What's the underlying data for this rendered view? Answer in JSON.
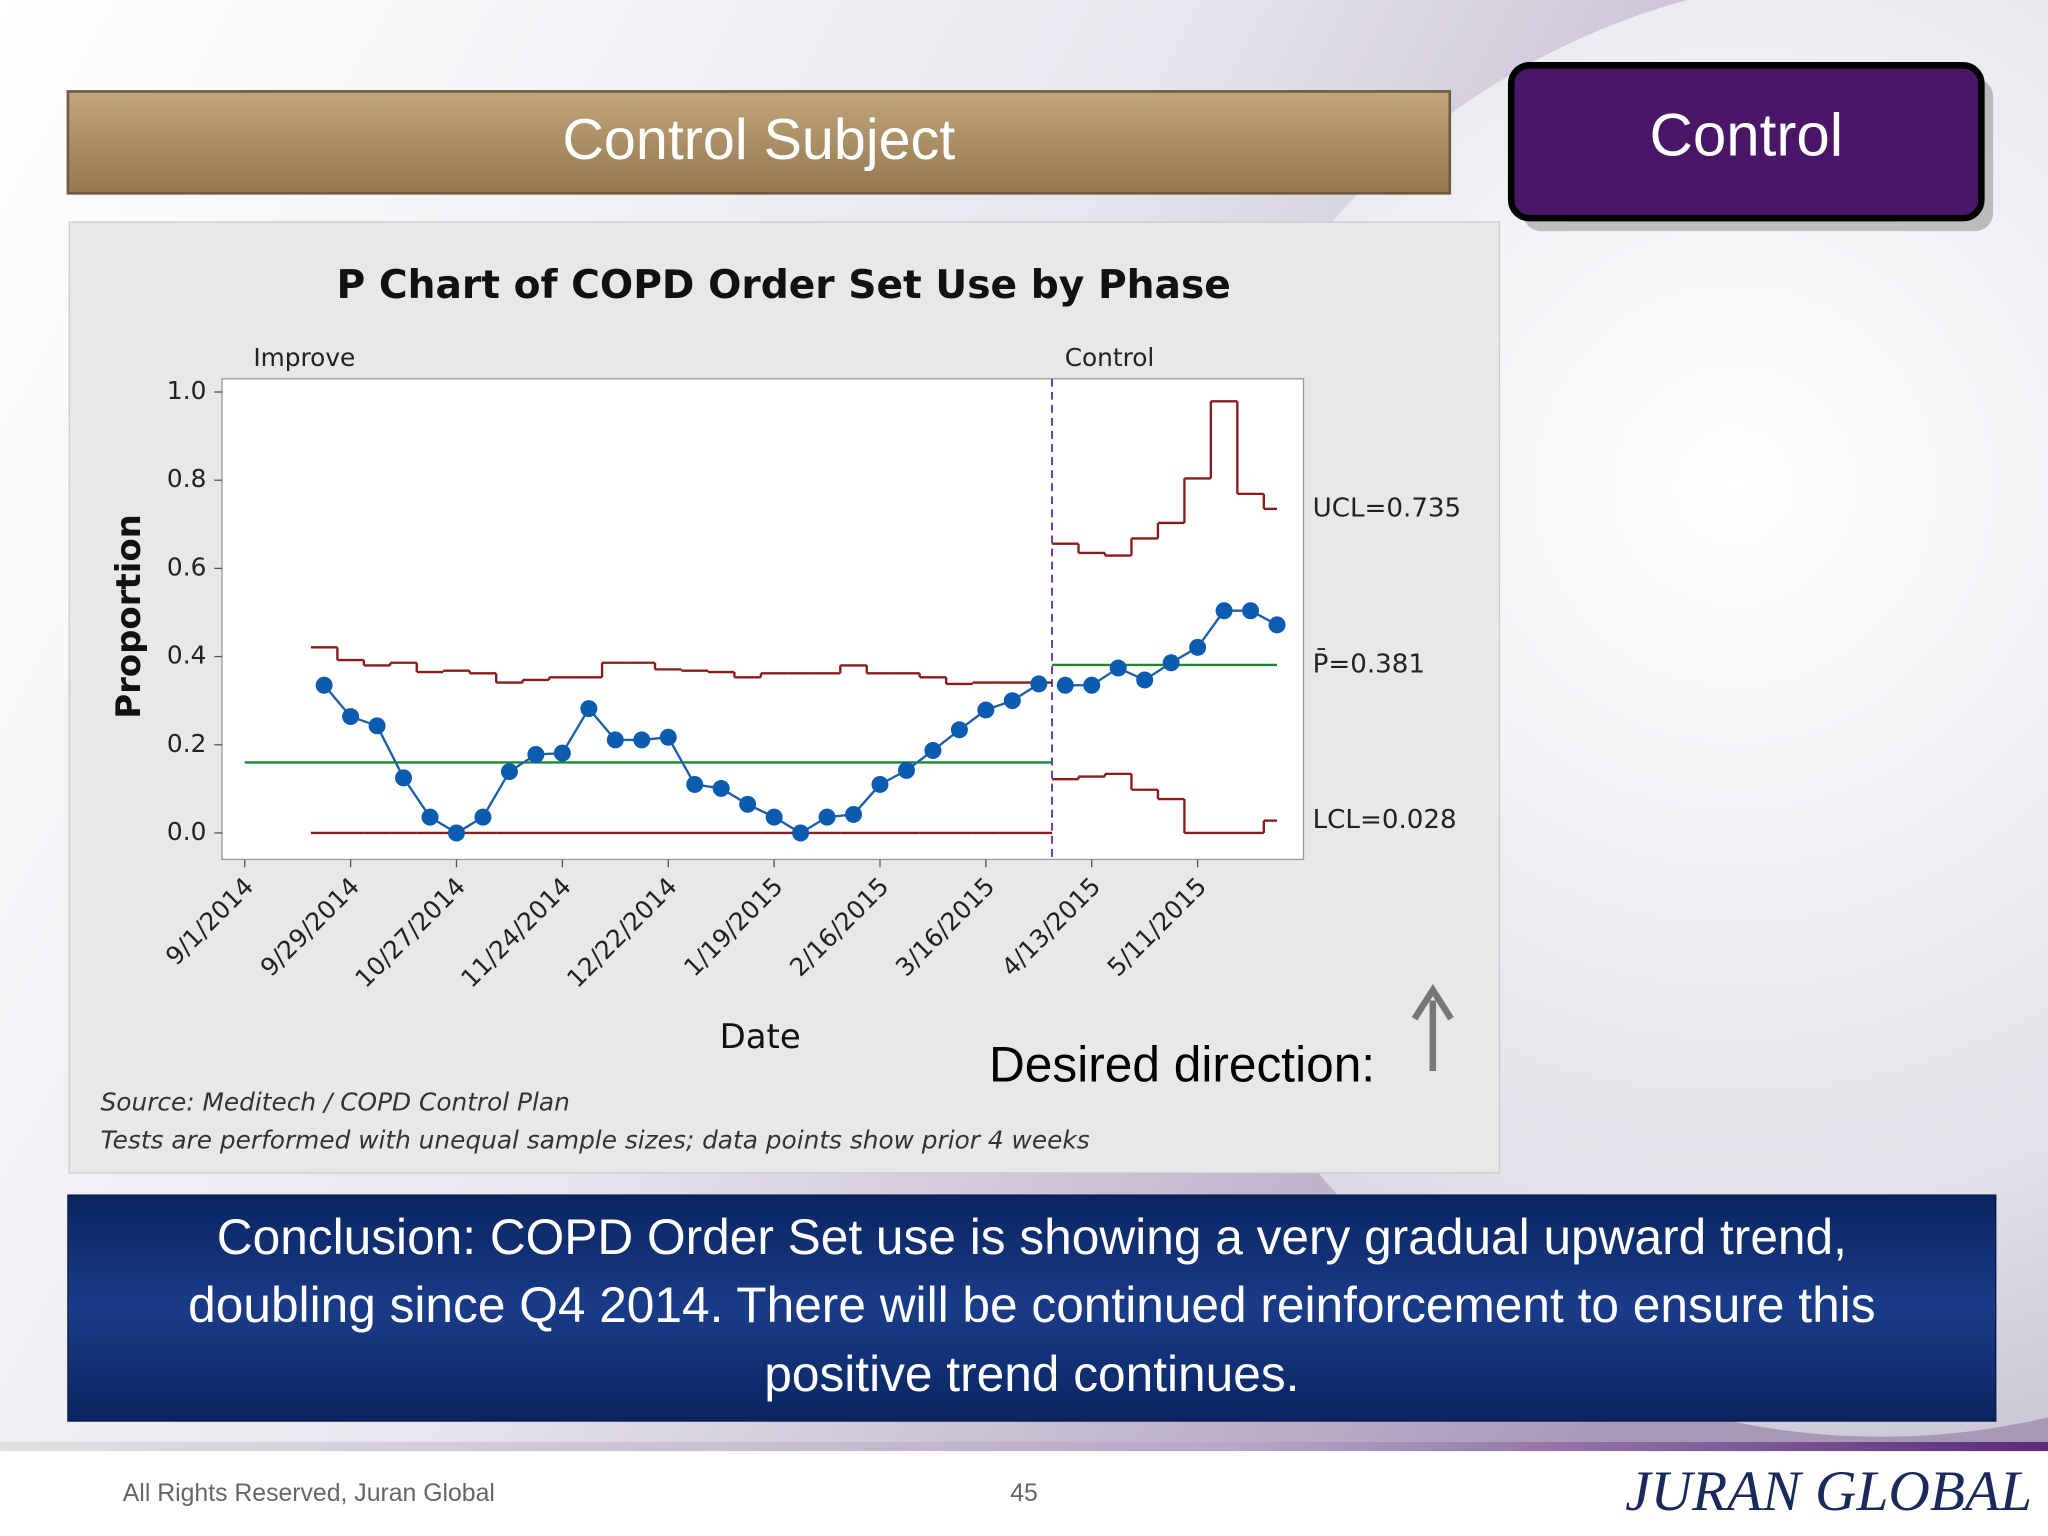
{
  "header": {
    "title": "Control Subject",
    "badge": "Control"
  },
  "chart_data": {
    "type": "p-chart",
    "title": "P Chart of COPD Order Set Use by Phase",
    "x_label": "Date",
    "y_label": "Proportion",
    "xlim": [
      "8/26/2014",
      "6/8/2015"
    ],
    "xticks": [
      "9/1/2014",
      "9/29/2014",
      "10/27/2014",
      "11/24/2014",
      "12/22/2014",
      "1/19/2015",
      "2/16/2015",
      "3/16/2015",
      "4/13/2015",
      "5/11/2015"
    ],
    "ylim": [
      -0.06,
      1.03
    ],
    "yticks": [
      {
        "value": 0,
        "label": "0.0"
      },
      0.2,
      0.4,
      0.6,
      0.8,
      {
        "value": 1,
        "label": "1.0"
      }
    ],
    "point_color": "#0b5cb0",
    "limit_color": "#8b1a1a",
    "center_color": "#1a8a2a",
    "phases": [
      {
        "label": "Improve",
        "x": [
          "9/22/2014",
          "9/29/2014",
          "10/6/2014",
          "10/13/2014",
          "10/20/2014",
          "10/27/2014",
          "11/3/2014",
          "11/10/2014",
          "11/17/2014",
          "11/24/2014",
          "12/1/2014",
          "12/8/2014",
          "12/15/2014",
          "12/22/2014",
          "12/29/2014",
          "1/5/2015",
          "1/12/2015",
          "1/19/2015",
          "1/26/2015",
          "2/2/2015",
          "2/9/2015",
          "2/16/2015",
          "2/23/2015",
          "3/2/2015",
          "3/9/2015",
          "3/16/2015",
          "3/23/2015",
          "3/30/2015"
        ],
        "values": [
          0.335,
          0.264,
          0.243,
          0.125,
          0.036,
          0,
          0.036,
          0.139,
          0.178,
          0.181,
          0.282,
          0.211,
          0.211,
          0.217,
          0.11,
          0.101,
          0.065,
          0.036,
          0,
          0.036,
          0.042,
          0.11,
          0.142,
          0.187,
          0.234,
          0.279,
          0.3,
          0.338
        ],
        "ucl": [
          0.421,
          0.392,
          0.38,
          0.386,
          0.365,
          0.368,
          0.362,
          0.341,
          0.347,
          0.353,
          0.353,
          0.386,
          0.386,
          0.371,
          0.368,
          0.365,
          0.353,
          0.362,
          0.362,
          0.362,
          0.38,
          0.362,
          0.362,
          0.353,
          0.338,
          0.341,
          0.341,
          0.341
        ],
        "lcl": [
          0,
          0,
          0,
          0,
          0,
          0,
          0,
          0,
          0,
          0,
          0,
          0,
          0,
          0,
          0,
          0,
          0,
          0,
          0,
          0,
          0,
          0,
          0,
          0,
          0,
          0,
          0,
          0
        ],
        "center": 0.16
      },
      {
        "label": "Control",
        "x": [
          "4/6/2015",
          "4/13/2015",
          "4/20/2015",
          "4/27/2015",
          "5/4/2015",
          "5/11/2015",
          "5/18/2015",
          "5/25/2015",
          "6/1/2015"
        ],
        "values": [
          0.335,
          0.335,
          0.374,
          0.347,
          0.386,
          0.421,
          0.504,
          0.504,
          0.472
        ],
        "ucl": [
          0.656,
          0.635,
          0.629,
          0.668,
          0.703,
          0.804,
          0.979,
          0.769,
          0.735
        ],
        "lcl": [
          0.122,
          0.128,
          0.134,
          0.098,
          0.077,
          0,
          0,
          0,
          0.028
        ],
        "center": 0.381,
        "ucl_label": "UCL=0.735",
        "center_label": "P̄=0.381",
        "lcl_label": "LCL=0.028"
      }
    ],
    "notes": [
      "Source: Meditech / COPD Control Plan",
      "Tests are performed with unequal sample sizes; data points show prior 4 weeks"
    ]
  },
  "desired_direction": "Desired direction:",
  "conclusion": [
    "Conclusion:  COPD Order Set use is showing a very gradual upward trend,",
    "doubling since Q4 2014.  There will be continued reinforcement to ensure this",
    "positive trend continues."
  ],
  "footer": {
    "rights": "All Rights Reserved, Juran Global",
    "page": "45",
    "logo": "JURAN GLOBAL"
  }
}
